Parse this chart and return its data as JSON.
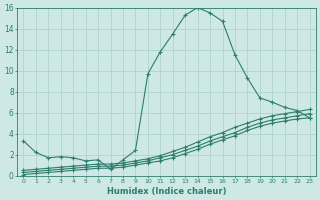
{
  "xlabel": "Humidex (Indice chaleur)",
  "x": [
    0,
    1,
    2,
    3,
    4,
    5,
    6,
    7,
    8,
    9,
    10,
    11,
    12,
    13,
    14,
    15,
    16,
    17,
    18,
    19,
    20,
    21,
    22,
    23
  ],
  "line1": [
    3.3,
    2.2,
    1.7,
    1.8,
    1.7,
    1.4,
    1.5,
    0.6,
    1.5,
    2.4,
    9.7,
    11.8,
    13.5,
    15.3,
    16.0,
    15.5,
    14.7,
    11.5,
    9.3,
    7.4,
    7.0,
    6.5,
    6.2,
    5.5
  ],
  "line2": [
    0.5,
    0.6,
    0.7,
    0.8,
    0.9,
    1.0,
    1.1,
    1.1,
    1.2,
    1.4,
    1.6,
    1.9,
    2.3,
    2.7,
    3.2,
    3.7,
    4.1,
    4.6,
    5.0,
    5.4,
    5.7,
    5.9,
    6.1,
    6.3
  ],
  "line3": [
    0.3,
    0.4,
    0.5,
    0.6,
    0.7,
    0.8,
    0.9,
    0.9,
    1.0,
    1.2,
    1.4,
    1.7,
    2.0,
    2.4,
    2.8,
    3.3,
    3.7,
    4.1,
    4.6,
    5.0,
    5.3,
    5.5,
    5.7,
    5.9
  ],
  "line4": [
    0.1,
    0.2,
    0.3,
    0.4,
    0.5,
    0.6,
    0.7,
    0.7,
    0.8,
    1.0,
    1.2,
    1.4,
    1.7,
    2.1,
    2.5,
    3.0,
    3.4,
    3.8,
    4.3,
    4.7,
    5.0,
    5.2,
    5.4,
    5.5
  ],
  "line_color": "#2e7d6e",
  "bg_color": "#cde8e5",
  "grid_color": "#aacfcc",
  "ylim": [
    0,
    16
  ],
  "xlim": [
    -0.5,
    23.5
  ],
  "yticks": [
    0,
    2,
    4,
    6,
    8,
    10,
    12,
    14,
    16
  ],
  "xticks": [
    0,
    1,
    2,
    3,
    4,
    5,
    6,
    7,
    8,
    9,
    10,
    11,
    12,
    13,
    14,
    15,
    16,
    17,
    18,
    19,
    20,
    21,
    22,
    23
  ]
}
